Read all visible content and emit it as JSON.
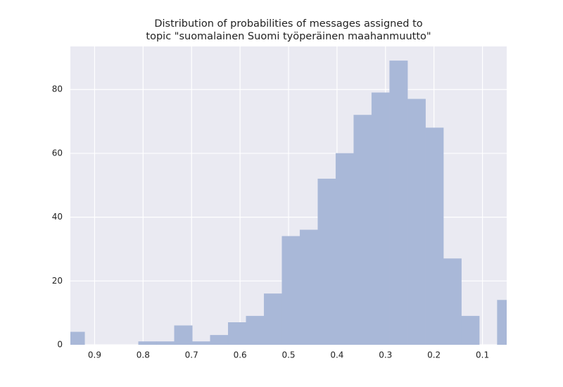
{
  "chart_data": {
    "type": "histogram",
    "title": [
      "Distribution of probabilities of messages assigned to",
      "topic \"suomalainen Suomi työperäinen maahanmuutto\""
    ],
    "bins": [
      0.0325,
      0.0695,
      0.1065,
      0.1435,
      0.1805,
      0.2175,
      0.2545,
      0.2915,
      0.3285,
      0.3655,
      0.4025,
      0.4395,
      0.4765,
      0.5135,
      0.5505,
      0.5875,
      0.6245,
      0.6615,
      0.6985,
      0.7355,
      0.7725,
      0.8095,
      0.8465,
      0.8835,
      0.9205,
      0.9575
    ],
    "values": [
      14,
      0,
      9,
      27,
      68,
      77,
      89,
      79,
      72,
      60,
      52,
      36,
      34,
      16,
      9,
      7,
      3,
      1,
      6,
      1,
      1,
      0,
      0,
      0,
      4
    ],
    "color": "#a9b8d8",
    "xlim": [
      0.95,
      0.05
    ],
    "xticks": [
      0.9,
      0.8,
      0.7,
      0.6,
      0.5,
      0.4,
      0.3,
      0.2,
      0.1
    ],
    "ylim": [
      0,
      93.5
    ],
    "yticks": [
      0,
      20,
      40,
      60,
      80
    ],
    "grid": true
  }
}
